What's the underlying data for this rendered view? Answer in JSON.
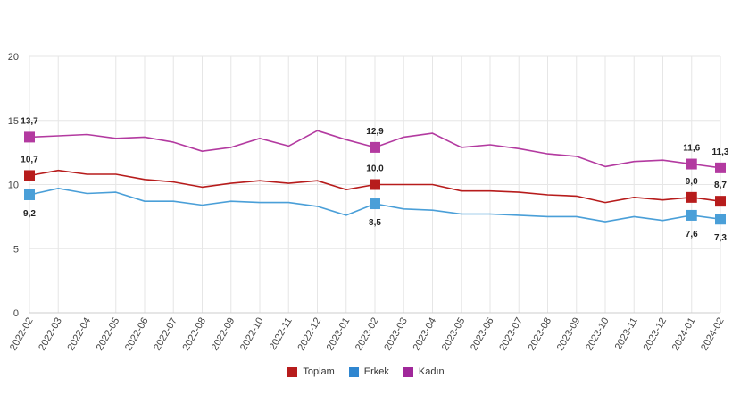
{
  "chart_data": {
    "type": "line",
    "title": "",
    "xlabel": "",
    "ylabel": "",
    "ylim": [
      0,
      20
    ],
    "yticks": [
      0,
      5,
      10,
      15,
      20
    ],
    "grid": true,
    "legend_position": "bottom-center",
    "categories": [
      "2022-02",
      "2022-03",
      "2022-04",
      "2022-05",
      "2022-06",
      "2022-07",
      "2022-08",
      "2022-09",
      "2022-10",
      "2022-11",
      "2022-12",
      "2023-01",
      "2023-02",
      "2023-03",
      "2023-04",
      "2023-05",
      "2023-06",
      "2023-07",
      "2023-08",
      "2023-09",
      "2023-10",
      "2023-11",
      "2023-12",
      "2024-01",
      "2024-02"
    ],
    "series": [
      {
        "name": "Toplam",
        "color": "#b71c1c",
        "values": [
          10.7,
          11.1,
          10.8,
          10.8,
          10.4,
          10.2,
          9.8,
          10.1,
          10.3,
          10.1,
          10.3,
          9.6,
          10.0,
          10.0,
          10.0,
          9.5,
          9.5,
          9.4,
          9.2,
          9.1,
          8.6,
          9.0,
          8.8,
          9.0,
          8.7
        ],
        "markers": [
          {
            "index": 0,
            "label": "10,7",
            "pos": "above"
          },
          {
            "index": 12,
            "label": "10,0",
            "pos": "above"
          },
          {
            "index": 23,
            "label": "9,0",
            "pos": "above"
          },
          {
            "index": 24,
            "label": "8,7",
            "pos": "above"
          }
        ]
      },
      {
        "name": "Erkek",
        "color": "#4a9fd8",
        "values": [
          9.2,
          9.7,
          9.3,
          9.4,
          8.7,
          8.7,
          8.4,
          8.7,
          8.6,
          8.6,
          8.3,
          7.6,
          8.5,
          8.1,
          8.0,
          7.7,
          7.7,
          7.6,
          7.5,
          7.5,
          7.1,
          7.5,
          7.2,
          7.6,
          7.3
        ],
        "markers": [
          {
            "index": 0,
            "label": "9,2",
            "pos": "below"
          },
          {
            "index": 12,
            "label": "8,5",
            "pos": "below"
          },
          {
            "index": 23,
            "label": "7,6",
            "pos": "below"
          },
          {
            "index": 24,
            "label": "7,3",
            "pos": "below"
          }
        ]
      },
      {
        "name": "Kadın",
        "color": "#b33aa0",
        "values": [
          13.7,
          13.8,
          13.9,
          13.6,
          13.7,
          13.3,
          12.6,
          12.9,
          13.6,
          13.0,
          14.2,
          13.5,
          12.9,
          13.7,
          14.0,
          12.9,
          13.1,
          12.8,
          12.4,
          12.2,
          11.4,
          11.8,
          11.9,
          11.6,
          11.3
        ],
        "markers": [
          {
            "index": 0,
            "label": "13,7",
            "pos": "above"
          },
          {
            "index": 12,
            "label": "12,9",
            "pos": "above"
          },
          {
            "index": 23,
            "label": "11,6",
            "pos": "above"
          },
          {
            "index": 24,
            "label": "11,3",
            "pos": "above"
          }
        ]
      }
    ]
  },
  "legend": {
    "items": [
      {
        "label": "Toplam",
        "color": "#b71c1c"
      },
      {
        "label": "Erkek",
        "color": "#2f86d0"
      },
      {
        "label": "Kadın",
        "color": "#a0289a"
      }
    ]
  }
}
